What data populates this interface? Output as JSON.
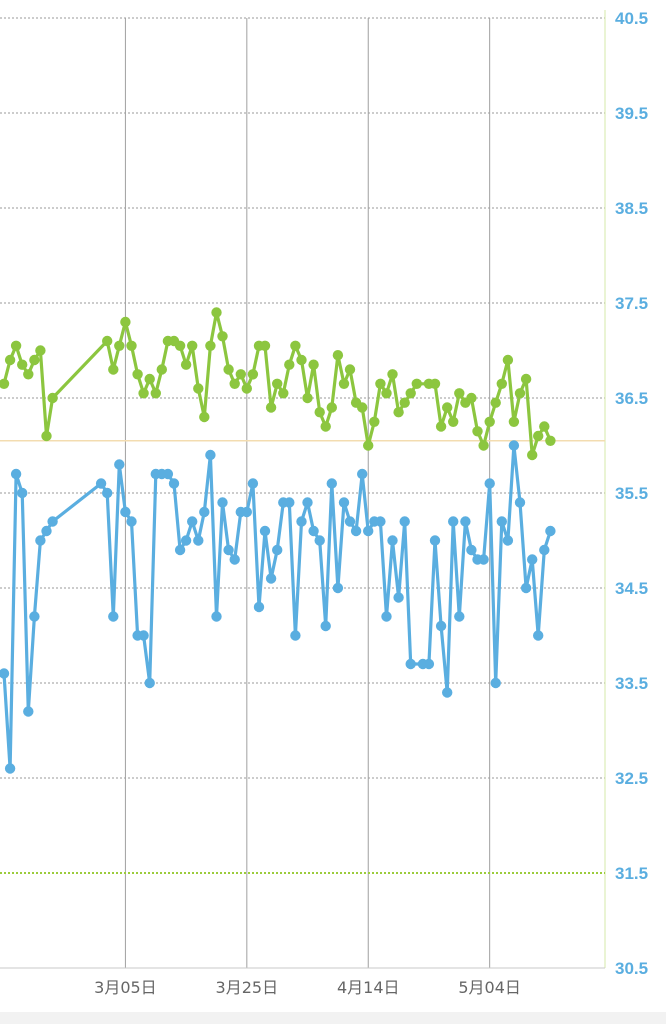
{
  "chart_data": {
    "type": "line",
    "title": "",
    "xlabel": "",
    "ylabel": "",
    "ylim": [
      30.5,
      40.5
    ],
    "yticks": [
      "30.5",
      "31.5",
      "32.5",
      "33.5",
      "34.5",
      "35.5",
      "36.5",
      "37.5",
      "38.5",
      "39.5",
      "40.5"
    ],
    "xticks": [
      {
        "label": "3月05日",
        "date": "2023-03-05"
      },
      {
        "label": "3月25日",
        "date": "2023-03-25"
      },
      {
        "label": "4月14日",
        "date": "2023-04-14"
      },
      {
        "label": "5月04日",
        "date": "2023-05-04"
      }
    ],
    "xlim": [
      "2023-02-13",
      "2023-05-23"
    ],
    "reference_lines": [
      {
        "y": 36.05,
        "color": "#f3dcb0",
        "style": "solid"
      },
      {
        "y": 31.5,
        "color": "#9ccc3c",
        "style": "dotted"
      }
    ],
    "grid": true,
    "legend": "none",
    "series": [
      {
        "color": "#8cc63f",
        "x": [
          "2023-02-13",
          "2023-02-14",
          "2023-02-15",
          "2023-02-16",
          "2023-02-17",
          "2023-02-18",
          "2023-02-19",
          "2023-02-20",
          "2023-02-21",
          "2023-03-02",
          "2023-03-03",
          "2023-03-04",
          "2023-03-05",
          "2023-03-06",
          "2023-03-07",
          "2023-03-08",
          "2023-03-09",
          "2023-03-10",
          "2023-03-11",
          "2023-03-12",
          "2023-03-13",
          "2023-03-14",
          "2023-03-15",
          "2023-03-16",
          "2023-03-17",
          "2023-03-18",
          "2023-03-19",
          "2023-03-20",
          "2023-03-21",
          "2023-03-22",
          "2023-03-23",
          "2023-03-24",
          "2023-03-25",
          "2023-03-26",
          "2023-03-27",
          "2023-03-28",
          "2023-03-29",
          "2023-03-30",
          "2023-03-31",
          "2023-04-01",
          "2023-04-02",
          "2023-04-03",
          "2023-04-04",
          "2023-04-05",
          "2023-04-06",
          "2023-04-07",
          "2023-04-08",
          "2023-04-09",
          "2023-04-10",
          "2023-04-11",
          "2023-04-12",
          "2023-04-13",
          "2023-04-14",
          "2023-04-15",
          "2023-04-16",
          "2023-04-17",
          "2023-04-18",
          "2023-04-19",
          "2023-04-20",
          "2023-04-21",
          "2023-04-22",
          "2023-04-24",
          "2023-04-25",
          "2023-04-26",
          "2023-04-27",
          "2023-04-28",
          "2023-04-29",
          "2023-04-30",
          "2023-05-01",
          "2023-05-02",
          "2023-05-03",
          "2023-05-04",
          "2023-05-05",
          "2023-05-06",
          "2023-05-07",
          "2023-05-08",
          "2023-05-09",
          "2023-05-10",
          "2023-05-11",
          "2023-05-12",
          "2023-05-13",
          "2023-05-14"
        ],
        "values": [
          36.65,
          36.9,
          37.05,
          36.85,
          36.75,
          36.9,
          37.0,
          36.1,
          36.5,
          37.1,
          36.8,
          37.05,
          37.3,
          37.05,
          36.75,
          36.55,
          36.7,
          36.55,
          36.8,
          37.1,
          37.1,
          37.05,
          36.85,
          37.05,
          36.6,
          36.3,
          37.05,
          37.4,
          37.15,
          36.8,
          36.65,
          36.75,
          36.6,
          36.75,
          37.05,
          37.05,
          36.4,
          36.65,
          36.55,
          36.85,
          37.05,
          36.9,
          36.5,
          36.85,
          36.35,
          36.2,
          36.4,
          36.95,
          36.65,
          36.8,
          36.45,
          36.4,
          36.0,
          36.25,
          36.65,
          36.55,
          36.75,
          36.35,
          36.45,
          36.55,
          36.65,
          36.65,
          36.65,
          36.2,
          36.4,
          36.25,
          36.55,
          36.45,
          36.5,
          36.15,
          36.0,
          36.25,
          36.45,
          36.65,
          36.9,
          36.25,
          36.55,
          36.7,
          35.9,
          36.1,
          36.2,
          36.05
        ]
      },
      {
        "color": "#5aaee0",
        "x": [
          "2023-02-13",
          "2023-02-14",
          "2023-02-15",
          "2023-02-16",
          "2023-02-17",
          "2023-02-18",
          "2023-02-19",
          "2023-02-20",
          "2023-02-21",
          "2023-03-01",
          "2023-03-02",
          "2023-03-03",
          "2023-03-04",
          "2023-03-05",
          "2023-03-06",
          "2023-03-07",
          "2023-03-08",
          "2023-03-09",
          "2023-03-10",
          "2023-03-11",
          "2023-03-12",
          "2023-03-13",
          "2023-03-14",
          "2023-03-15",
          "2023-03-16",
          "2023-03-17",
          "2023-03-18",
          "2023-03-19",
          "2023-03-20",
          "2023-03-21",
          "2023-03-22",
          "2023-03-23",
          "2023-03-24",
          "2023-03-25",
          "2023-03-26",
          "2023-03-27",
          "2023-03-28",
          "2023-03-29",
          "2023-03-30",
          "2023-03-31",
          "2023-04-01",
          "2023-04-02",
          "2023-04-03",
          "2023-04-04",
          "2023-04-05",
          "2023-04-06",
          "2023-04-07",
          "2023-04-08",
          "2023-04-09",
          "2023-04-10",
          "2023-04-11",
          "2023-04-12",
          "2023-04-13",
          "2023-04-14",
          "2023-04-15",
          "2023-04-16",
          "2023-04-17",
          "2023-04-18",
          "2023-04-19",
          "2023-04-20",
          "2023-04-21",
          "2023-04-23",
          "2023-04-24",
          "2023-04-25",
          "2023-04-26",
          "2023-04-27",
          "2023-04-28",
          "2023-04-29",
          "2023-04-30",
          "2023-05-01",
          "2023-05-02",
          "2023-05-03",
          "2023-05-04",
          "2023-05-05",
          "2023-05-06",
          "2023-05-07",
          "2023-05-08",
          "2023-05-09",
          "2023-05-10",
          "2023-05-11",
          "2023-05-12",
          "2023-05-13",
          "2023-05-14"
        ],
        "values": [
          33.6,
          32.6,
          35.7,
          35.5,
          33.2,
          34.2,
          35.0,
          35.1,
          35.2,
          35.6,
          35.5,
          34.2,
          35.8,
          35.3,
          35.2,
          34.0,
          34.0,
          33.5,
          35.7,
          35.7,
          35.7,
          35.6,
          34.9,
          35.0,
          35.2,
          35.0,
          35.3,
          35.9,
          34.2,
          35.4,
          34.9,
          34.8,
          35.3,
          35.3,
          35.6,
          34.3,
          35.1,
          34.6,
          34.9,
          35.4,
          35.4,
          34.0,
          35.2,
          35.4,
          35.1,
          35.0,
          34.1,
          35.6,
          34.5,
          35.4,
          35.2,
          35.1,
          35.7,
          35.1,
          35.2,
          35.2,
          34.2,
          35.0,
          34.4,
          35.2,
          33.7,
          33.7,
          33.7,
          35.0,
          34.1,
          33.4,
          35.2,
          34.2,
          35.2,
          34.9,
          34.8,
          34.8,
          35.6,
          33.5,
          35.2,
          35.0,
          36.0,
          35.4,
          34.5,
          34.8,
          34.0,
          34.9,
          35.1
        ]
      }
    ]
  }
}
